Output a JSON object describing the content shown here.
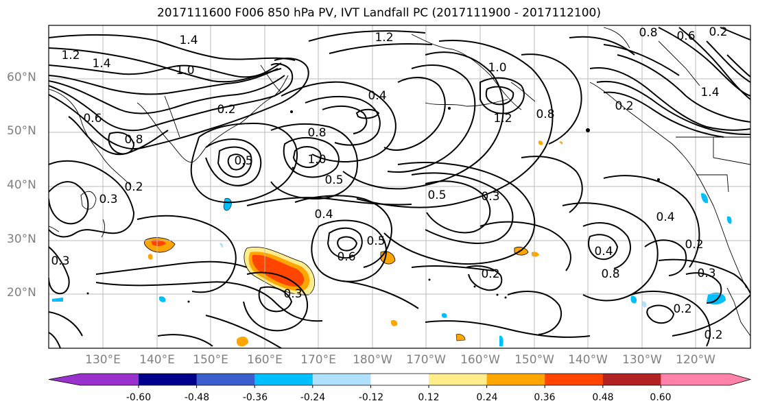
{
  "title": "2017111600 F006 850 hPa PV, IVT Landfall PC (2017111900 - 2017112100)",
  "lat_ticks": [
    "60°N",
    "50°N",
    "40°N",
    "30°N",
    "20°N"
  ],
  "lon_ticks": [
    "130°E",
    "140°E",
    "150°E",
    "160°E",
    "170°E",
    "180°W",
    "170°W",
    "160°W",
    "150°W",
    "140°W",
    "130°W",
    "120°W"
  ],
  "colorbar": {
    "colors": [
      "#9932cc",
      "#00008b",
      "#3a5fcd",
      "#00bfff",
      "#b0e2ff",
      "#ffffff",
      "#ffec8b",
      "#ffa500",
      "#ff4500",
      "#b22222",
      "#ff82ab"
    ],
    "tick_labels": [
      "-0.60",
      "-0.48",
      "-0.36",
      "-0.24",
      "-0.12",
      "0.12",
      "0.24",
      "0.36",
      "0.48",
      "0.60"
    ]
  },
  "contour_labels": [
    "1.2",
    "1.4",
    "1.4",
    "1.0",
    "1.2",
    "0.8",
    "0.6",
    "0.2",
    "1.0",
    "0.4",
    "0.2",
    "1.2",
    "0.8",
    "0.2",
    "1.0",
    "0.5",
    "0.8",
    "0.8",
    "0.5",
    "0.5",
    "0.4",
    "0.3",
    "0.6",
    "0.3",
    "0.5",
    "0.4",
    "0.2",
    "0.4",
    "0.2",
    "0.3",
    "0.2",
    "0.2",
    "0.2",
    "0.3",
    "0.3",
    "0.6",
    "0.8",
    "1.4"
  ]
}
